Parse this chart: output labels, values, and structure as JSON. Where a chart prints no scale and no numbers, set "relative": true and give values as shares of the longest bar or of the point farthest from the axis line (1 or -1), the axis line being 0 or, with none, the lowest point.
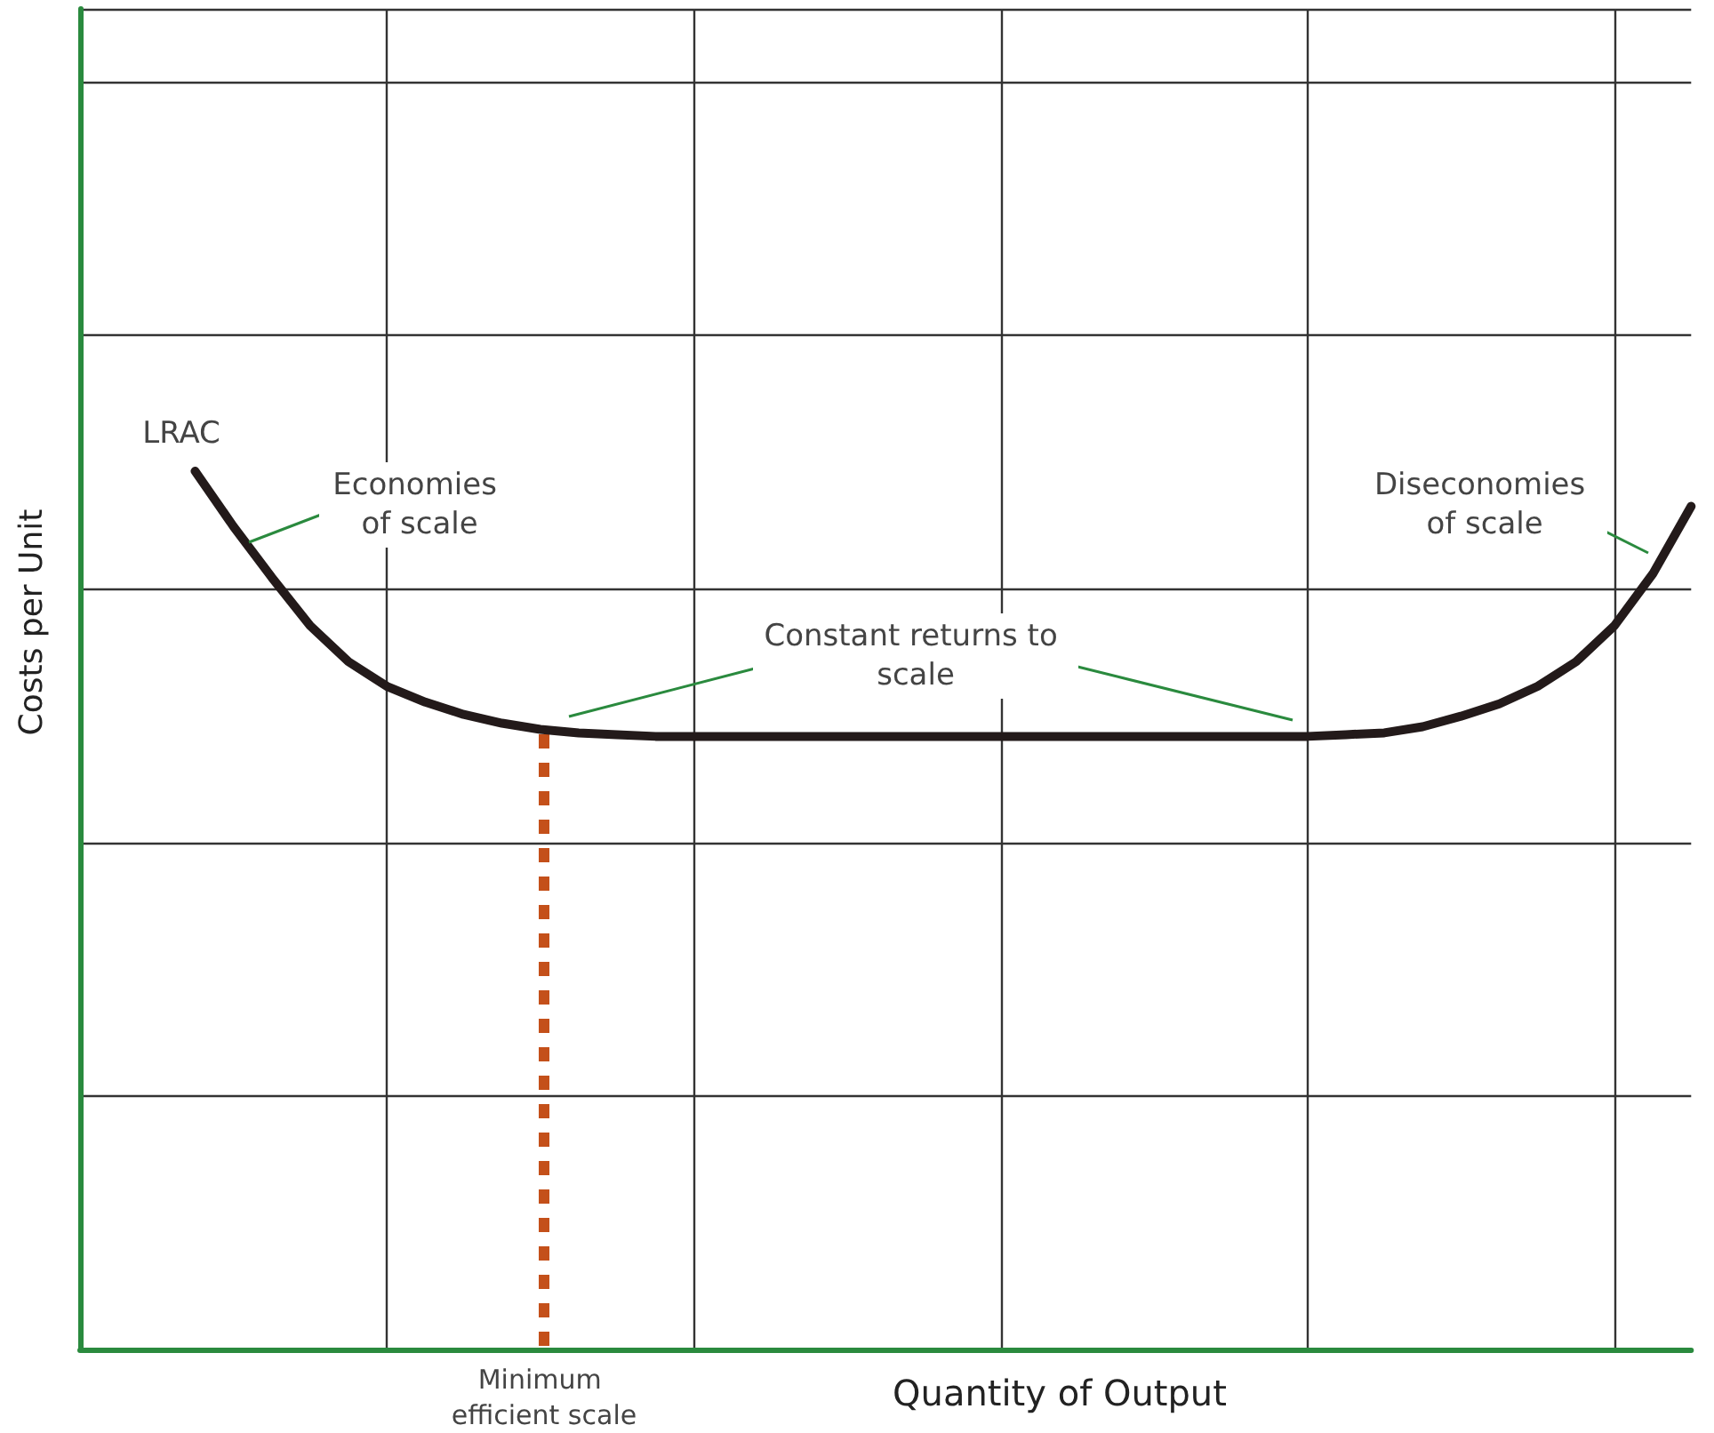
{
  "chart_data": {
    "type": "line",
    "relative": true,
    "xlabel": "Quantity of Output",
    "ylabel": "Costs per Unit",
    "categories": [
      null,
      null,
      null,
      null,
      null,
      null,
      null,
      null,
      null,
      null,
      null,
      null,
      null,
      null,
      null,
      null,
      null,
      null,
      null,
      null,
      null,
      null,
      null,
      null,
      null,
      null,
      null,
      null,
      null,
      null,
      null,
      null,
      null,
      null,
      null,
      null,
      null,
      null,
      null,
      null,
      null,
      null,
      null
    ],
    "series": [
      {
        "color": "#231a1a",
        "values": [
          null,
          null,
          null,
          1,
          0.937,
          0.879,
          0.824,
          0.783,
          0.755,
          0.737,
          0.723,
          0.713,
          0.706,
          0.702,
          0.7,
          0.698,
          0.698,
          0.698,
          0.698,
          0.698,
          0.698,
          0.698,
          0.698,
          0.698,
          0.698,
          0.698,
          0.698,
          0.698,
          0.698,
          0.698,
          0.698,
          0.698,
          0.698,
          0.7,
          0.702,
          0.709,
          0.721,
          0.735,
          0.755,
          0.783,
          0.824,
          0.883,
          0.96
        ]
      }
    ],
    "annotations": [
      "LRAC",
      "Economies of scale",
      "Constant returns to scale",
      "Diseconomies of scale",
      "Minimum efficient scale"
    ],
    "grid": true,
    "marker": "none",
    "line_style": "solid"
  }
}
